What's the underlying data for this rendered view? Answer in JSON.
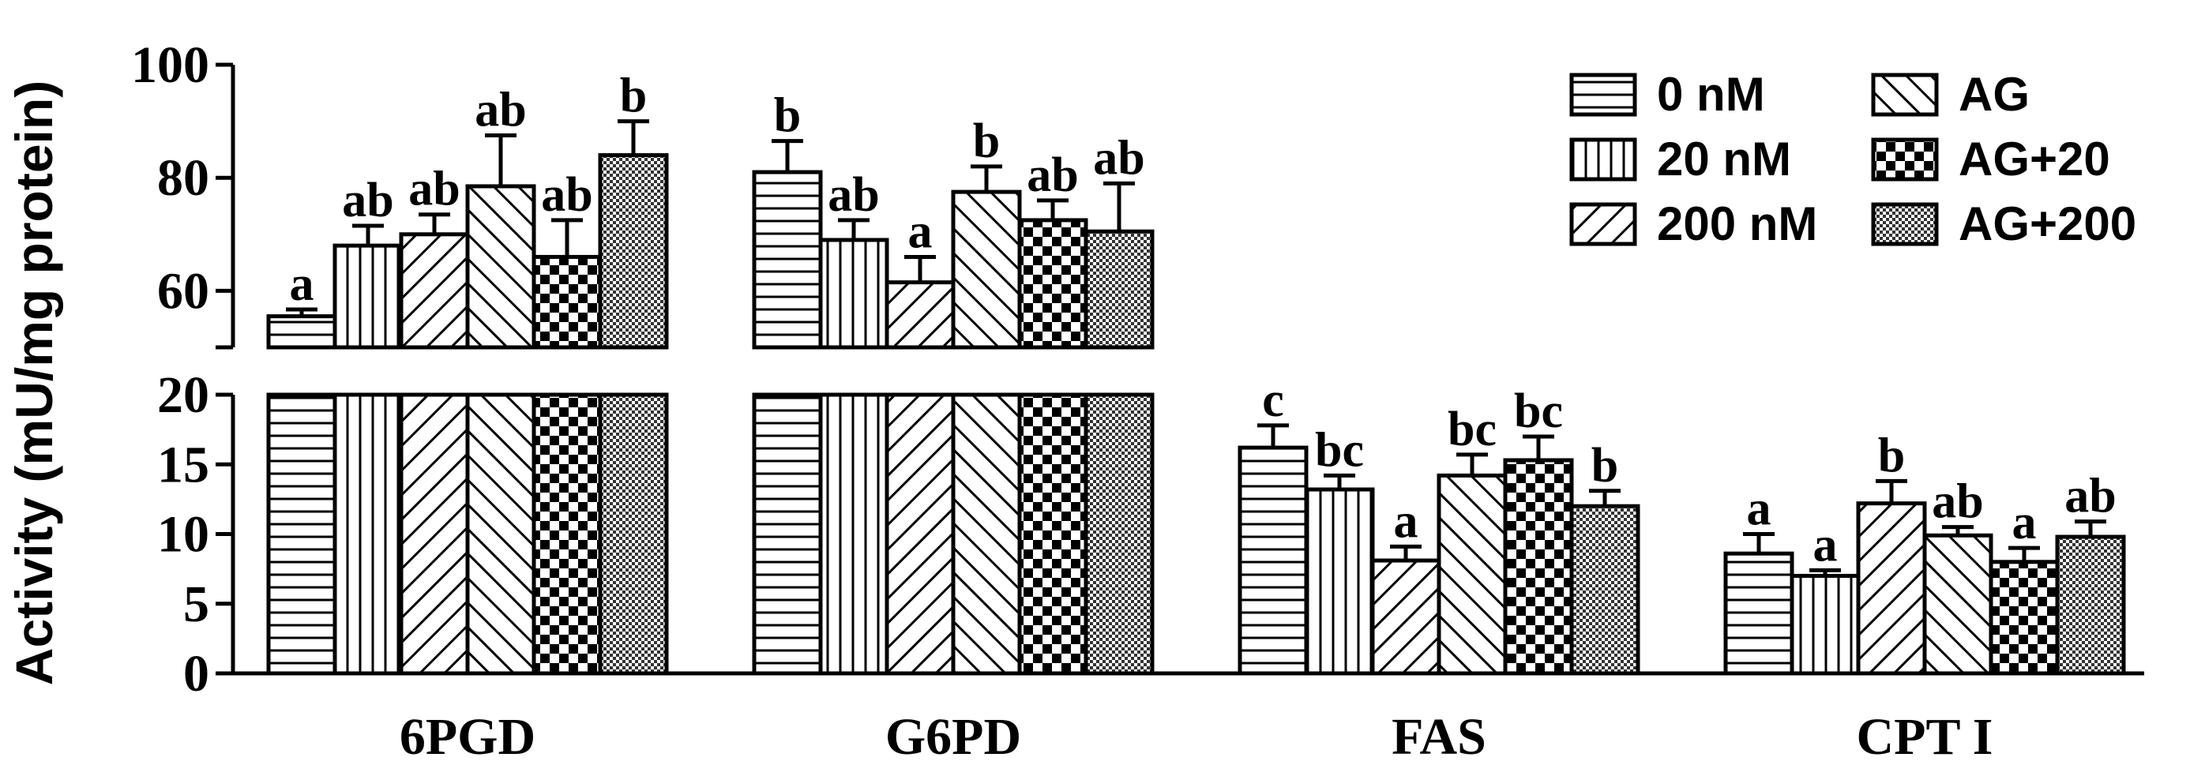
{
  "chart_data": {
    "type": "bar",
    "ylabel": "Activity (mU/mg protein)",
    "y_axis_break": true,
    "ylim_lower": [
      0,
      20
    ],
    "ylim_upper": [
      50,
      100
    ],
    "yticks_lower": [
      "0",
      "5",
      "10",
      "15",
      "20"
    ],
    "yticks_upper": [
      "60",
      "80",
      "100"
    ],
    "categories": [
      "6PGD",
      "G6PD",
      "FAS",
      "CPT I"
    ],
    "legend_position": "top-right",
    "series": [
      {
        "name": "0 nM",
        "pattern": "horizontal",
        "values": [
          55.5,
          81.0,
          16.2,
          8.6
        ],
        "errors": [
          1.2,
          5.5,
          1.6,
          1.4
        ],
        "labels": [
          "a",
          "b",
          "c",
          "a"
        ]
      },
      {
        "name": "20 nM",
        "pattern": "vertical",
        "values": [
          68.0,
          69.0,
          13.2,
          7.0
        ],
        "errors": [
          3.5,
          3.5,
          1.0,
          0.4
        ],
        "labels": [
          "ab",
          "ab",
          "bc",
          "a"
        ]
      },
      {
        "name": "200 nM",
        "pattern": "diag-up",
        "values": [
          70.0,
          61.5,
          8.1,
          12.2
        ],
        "errors": [
          3.5,
          4.5,
          1.0,
          1.6
        ],
        "labels": [
          "ab",
          "a",
          "a",
          "b"
        ]
      },
      {
        "name": "AG",
        "pattern": "diag-down",
        "values": [
          78.5,
          77.5,
          14.2,
          9.9
        ],
        "errors": [
          9.0,
          4.5,
          1.5,
          0.6
        ],
        "labels": [
          "ab",
          "b",
          "bc",
          "ab"
        ]
      },
      {
        "name": "AG+20",
        "pattern": "checker",
        "values": [
          66.0,
          72.5,
          15.3,
          8.0
        ],
        "errors": [
          6.5,
          3.5,
          1.7,
          1.0
        ],
        "labels": [
          "ab",
          "ab",
          "bc",
          "a"
        ]
      },
      {
        "name": "AG+200",
        "pattern": "fine-checker",
        "values": [
          84.0,
          70.5,
          12.0,
          9.8
        ],
        "errors": [
          6.0,
          8.5,
          1.1,
          1.1
        ],
        "labels": [
          "b",
          "ab",
          "b",
          "ab"
        ]
      }
    ]
  }
}
